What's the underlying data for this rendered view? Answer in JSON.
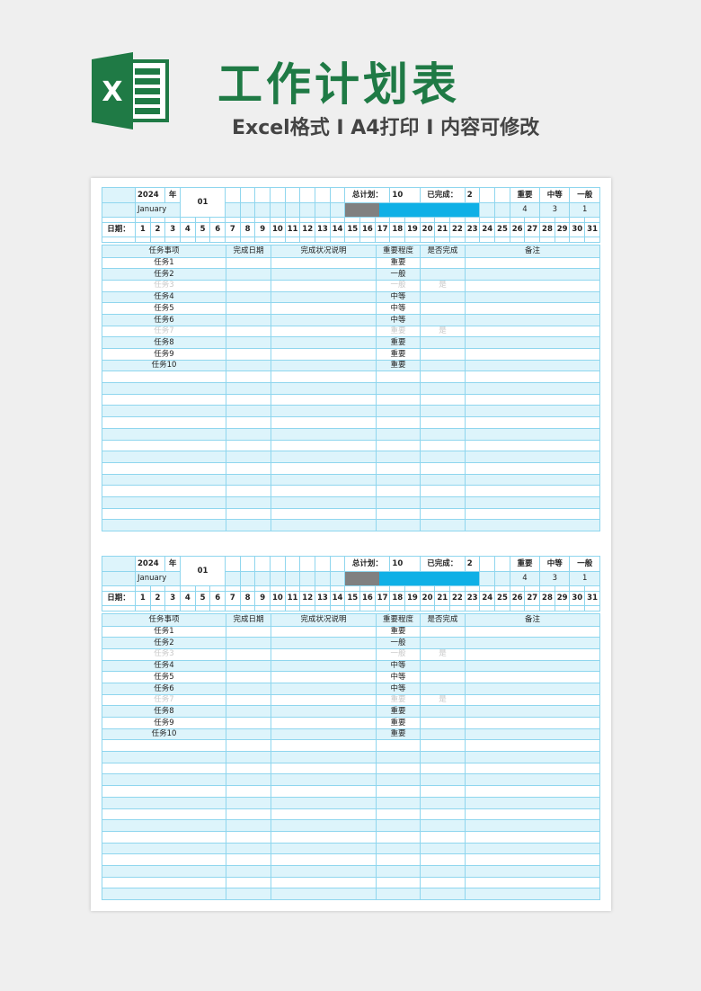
{
  "header": {
    "title": "工作计划表",
    "subtitle": "Excel格式 I A4打印 I 内容可修改",
    "logo_letter": "X"
  },
  "colors": {
    "accent": "#1f7a45",
    "fill": "#ddf4fb",
    "border": "#8fd6ee",
    "progress_bar": "#0fb0e6",
    "progress_gray": "#808080"
  },
  "blocks": [
    {
      "year": "2024",
      "year_label": "年",
      "month_name": "January",
      "month": "01",
      "total_label": "总计划：",
      "total": "10",
      "done_label": "已完成：",
      "done": "2",
      "levels": [
        {
          "label": "重要",
          "count": "4"
        },
        {
          "label": "中等",
          "count": "3"
        },
        {
          "label": "一般",
          "count": "1"
        }
      ],
      "progress_percent": 20,
      "date_label": "日期：",
      "columns": [
        "任务事项",
        "完成日期",
        "完成状况说明",
        "重要程度",
        "是否完成",
        "备注"
      ],
      "tasks": [
        {
          "name": "任务1",
          "level": "重要",
          "done": ""
        },
        {
          "name": "任务2",
          "level": "一般",
          "done": ""
        },
        {
          "name": "任务3",
          "level": "一般",
          "done": "是"
        },
        {
          "name": "任务4",
          "level": "中等",
          "done": ""
        },
        {
          "name": "任务5",
          "level": "中等",
          "done": ""
        },
        {
          "name": "任务6",
          "level": "中等",
          "done": ""
        },
        {
          "name": "任务7",
          "level": "重要",
          "done": "是"
        },
        {
          "name": "任务8",
          "level": "重要",
          "done": ""
        },
        {
          "name": "任务9",
          "level": "重要",
          "done": ""
        },
        {
          "name": "任务10",
          "level": "重要",
          "done": ""
        }
      ]
    },
    {
      "year": "2024",
      "year_label": "年",
      "month_name": "January",
      "month": "01",
      "total_label": "总计划：",
      "total": "10",
      "done_label": "已完成：",
      "done": "2",
      "levels": [
        {
          "label": "重要",
          "count": "4"
        },
        {
          "label": "中等",
          "count": "3"
        },
        {
          "label": "一般",
          "count": "1"
        }
      ],
      "progress_percent": 20,
      "date_label": "日期：",
      "columns": [
        "任务事项",
        "完成日期",
        "完成状况说明",
        "重要程度",
        "是否完成",
        "备注"
      ],
      "tasks": [
        {
          "name": "任务1",
          "level": "重要",
          "done": ""
        },
        {
          "name": "任务2",
          "level": "一般",
          "done": ""
        },
        {
          "name": "任务3",
          "level": "一般",
          "done": "是"
        },
        {
          "name": "任务4",
          "level": "中等",
          "done": ""
        },
        {
          "name": "任务5",
          "level": "中等",
          "done": ""
        },
        {
          "name": "任务6",
          "level": "中等",
          "done": ""
        },
        {
          "name": "任务7",
          "level": "重要",
          "done": "是"
        },
        {
          "name": "任务8",
          "level": "重要",
          "done": ""
        },
        {
          "name": "任务9",
          "level": "重要",
          "done": ""
        },
        {
          "name": "任务10",
          "level": "重要",
          "done": ""
        }
      ]
    }
  ],
  "days": [
    "1",
    "2",
    "3",
    "4",
    "5",
    "6",
    "7",
    "8",
    "9",
    "10",
    "11",
    "12",
    "13",
    "14",
    "15",
    "16",
    "17",
    "18",
    "19",
    "20",
    "21",
    "22",
    "23",
    "24",
    "25",
    "26",
    "27",
    "28",
    "29",
    "30",
    "31"
  ]
}
